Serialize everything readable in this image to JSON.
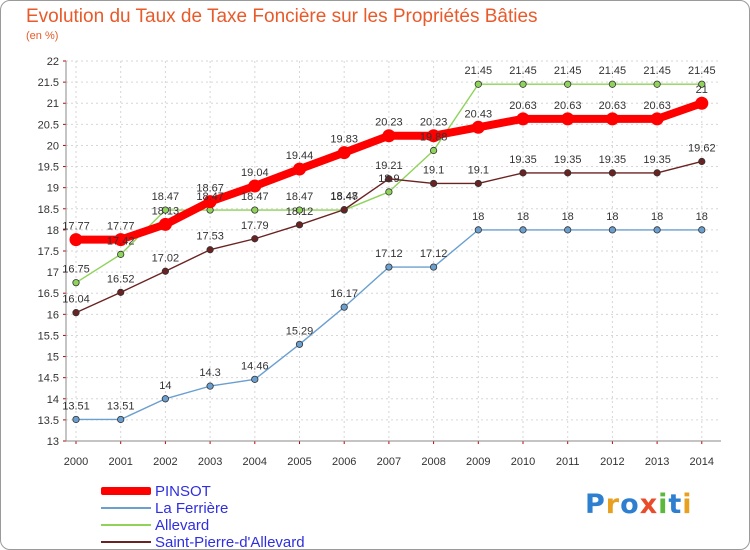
{
  "header": {
    "title": "Evolution du Taux de Taxe Foncière sur les Propriétés Bâties",
    "unit": "(en %)"
  },
  "logo": {
    "text": "Proxiti"
  },
  "chart_data": {
    "type": "line",
    "title": "Evolution du Taux de Taxe Foncière sur les Propriétés Bâties",
    "ylabel": "(en %)",
    "xlabel": "",
    "ylim": [
      13,
      22
    ],
    "ytick_step": 0.5,
    "grid": true,
    "legend_position": "bottom-left",
    "categories": [
      "2000",
      "2001",
      "2002",
      "2003",
      "2004",
      "2005",
      "2006",
      "2007",
      "2008",
      "2009",
      "2010",
      "2011",
      "2012",
      "2013",
      "2014"
    ],
    "series": [
      {
        "name": "PINSOT",
        "color": "#ff0000",
        "values": [
          17.77,
          17.77,
          18.13,
          18.67,
          19.04,
          19.44,
          19.83,
          20.23,
          20.23,
          20.43,
          20.63,
          20.63,
          20.63,
          20.63,
          21
        ],
        "labels": [
          "17.77",
          "17.77",
          "18.13",
          "18.67",
          "19.04",
          "19.44",
          "19.83",
          "20.23",
          "20.23",
          "20.43",
          "20.63",
          "20.63",
          "20.63",
          "20.63",
          "21"
        ]
      },
      {
        "name": "La Ferrière",
        "color": "#6a9fcf",
        "values": [
          13.51,
          13.51,
          14,
          14.3,
          14.46,
          15.29,
          16.17,
          17.12,
          17.12,
          18,
          18,
          18,
          18,
          18,
          18
        ],
        "labels": [
          "13.51",
          "13.51",
          "14",
          "14.3",
          "14.46",
          "15.29",
          "16.17",
          "17.12",
          "17.12",
          "18",
          "18",
          "18",
          "18",
          "18",
          "18"
        ]
      },
      {
        "name": "Allevard",
        "color": "#8fd35a",
        "values": [
          16.75,
          17.42,
          18.47,
          18.47,
          18.47,
          18.47,
          18.47,
          18.9,
          19.88,
          21.45,
          21.45,
          21.45,
          21.45,
          21.45,
          21.45
        ],
        "labels": [
          "16.75",
          "17.42",
          "18.47",
          "18.47",
          "18.47",
          "18.47",
          "18.47",
          "18.9",
          "19.88",
          "21.45",
          "21.45",
          "21.45",
          "21.45",
          "21.45",
          "21.45"
        ]
      },
      {
        "name": "Saint-Pierre-d'Allevard",
        "color": "#6b2222",
        "values": [
          16.04,
          16.52,
          17.02,
          17.53,
          17.79,
          18.12,
          18.48,
          19.21,
          19.1,
          19.1,
          19.35,
          19.35,
          19.35,
          19.35,
          19.62
        ],
        "labels": [
          "16.04",
          "16.52",
          "17.02",
          "17.53",
          "17.79",
          "18.12",
          "18.48",
          "19.21",
          "19.1",
          "19.1",
          "19.35",
          "19.35",
          "19.35",
          "19.35",
          "19.62"
        ]
      }
    ]
  }
}
